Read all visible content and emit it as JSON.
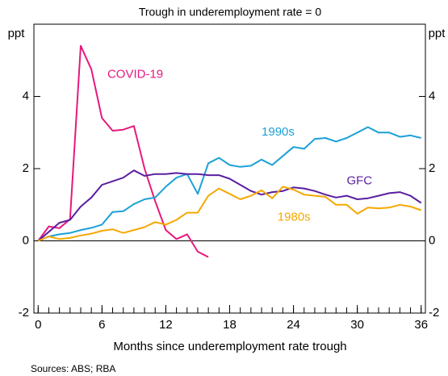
{
  "chart_data": {
    "type": "line",
    "subtitle": "Trough in underemployment rate = 0",
    "x_label": "Months since underemployment rate trough",
    "y_label": "ppt",
    "y2_label": "ppt",
    "source": "Sources: ABS; RBA",
    "x": [
      0,
      1,
      2,
      3,
      4,
      5,
      6,
      7,
      8,
      9,
      10,
      11,
      12,
      13,
      14,
      15,
      16,
      17,
      18,
      19,
      20,
      21,
      22,
      23,
      24,
      25,
      26,
      27,
      28,
      29,
      30,
      31,
      32,
      33,
      34,
      35,
      36
    ],
    "xlim": [
      -0.4,
      36.4
    ],
    "xticks": [
      0,
      6,
      12,
      18,
      24,
      30,
      36
    ],
    "minor_xtick_step": 1,
    "ylim": [
      -2,
      6
    ],
    "yticks": [
      -2,
      0,
      2,
      4
    ],
    "y2lim": [
      -2,
      6
    ],
    "y2ticks": [
      -2,
      0,
      2,
      4
    ],
    "series": [
      {
        "name": "COVID-19",
        "color": "#e6197d",
        "values": [
          0,
          0.4,
          0.35,
          0.6,
          5.4,
          4.75,
          3.4,
          3.05,
          3.08,
          3.18,
          2.0,
          1.1,
          0.3,
          0.05,
          0.18,
          -0.3,
          -0.45,
          null,
          null,
          null,
          null,
          null,
          null,
          null,
          null,
          null,
          null,
          null,
          null,
          null,
          null,
          null,
          null,
          null,
          null,
          null,
          null
        ]
      },
      {
        "name": "1990s",
        "color": "#1ba1d6",
        "values": [
          0,
          0.12,
          0.18,
          0.22,
          0.3,
          0.36,
          0.45,
          0.8,
          0.82,
          1.02,
          1.15,
          1.2,
          1.5,
          1.75,
          1.85,
          1.3,
          2.15,
          2.3,
          2.1,
          2.05,
          2.08,
          2.25,
          2.1,
          2.35,
          2.6,
          2.55,
          2.82,
          2.85,
          2.75,
          2.85,
          3.0,
          3.15,
          3.0,
          3.0,
          2.88,
          2.92,
          2.85
        ]
      },
      {
        "name": "GFC",
        "color": "#5a1fa0",
        "values": [
          0,
          0.25,
          0.5,
          0.58,
          0.95,
          1.2,
          1.55,
          1.65,
          1.75,
          1.95,
          1.8,
          1.85,
          1.85,
          1.88,
          1.85,
          1.85,
          1.82,
          1.82,
          1.72,
          1.55,
          1.38,
          1.28,
          1.35,
          1.38,
          1.48,
          1.45,
          1.38,
          1.28,
          1.2,
          1.25,
          1.15,
          1.18,
          1.25,
          1.32,
          1.35,
          1.25,
          1.05
        ]
      },
      {
        "name": "1980s",
        "color": "#f5a800",
        "values": [
          0,
          0.12,
          0.05,
          0.08,
          0.15,
          0.2,
          0.28,
          0.32,
          0.22,
          0.3,
          0.38,
          0.52,
          0.45,
          0.58,
          0.78,
          0.78,
          1.25,
          1.45,
          1.3,
          1.15,
          1.25,
          1.4,
          1.18,
          1.5,
          1.42,
          1.28,
          1.25,
          1.22,
          1.0,
          1.0,
          0.75,
          0.92,
          0.9,
          0.92,
          1.0,
          0.95,
          0.85
        ]
      }
    ]
  }
}
